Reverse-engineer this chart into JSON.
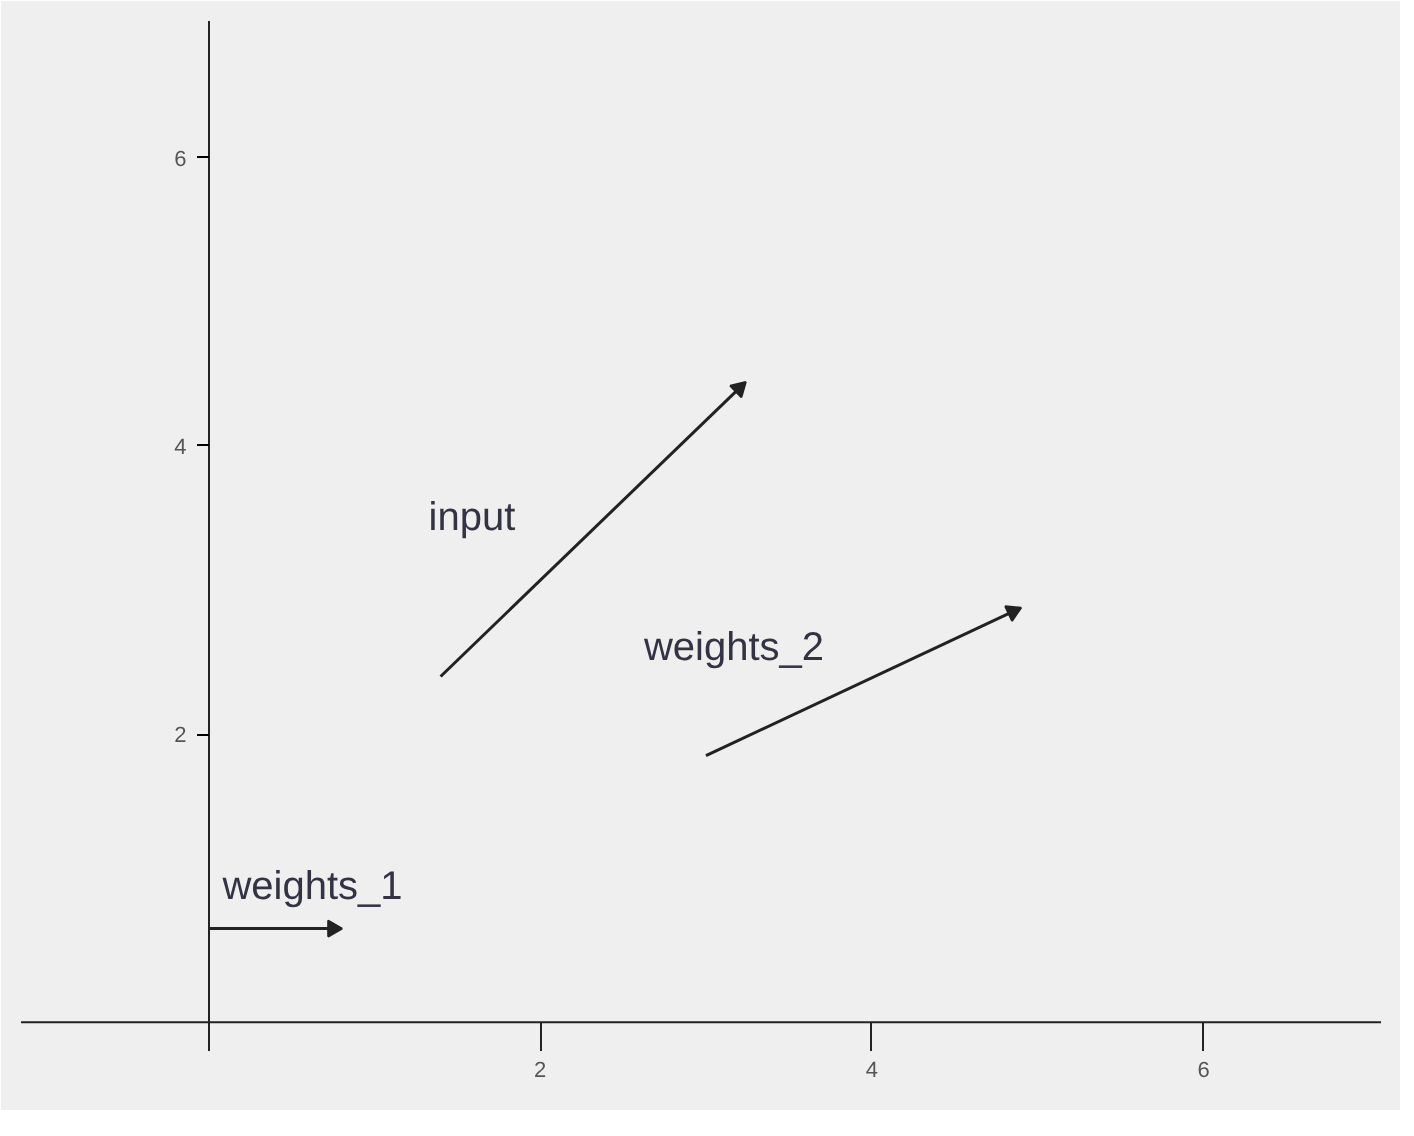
{
  "chart_data": {
    "type": "line",
    "xlim": [
      -1.13,
      7.07
    ],
    "ylim": [
      -0.2,
      6.95
    ],
    "xticks": [
      2,
      4,
      6
    ],
    "yticks": [
      2,
      4,
      6
    ],
    "grid": false,
    "series": [
      {
        "name": "input",
        "color": "#222222",
        "x": [
          1.4,
          3.2
        ],
        "values": [
          2.4,
          4.4
        ]
      },
      {
        "name": "weights_2",
        "color": "#222222",
        "x": [
          3.0,
          4.85
        ],
        "values": [
          1.85,
          2.85
        ]
      },
      {
        "name": "weights_1",
        "color": "#222222",
        "x": [
          0,
          0.75
        ],
        "values": [
          0.65,
          0.65
        ]
      }
    ]
  }
}
